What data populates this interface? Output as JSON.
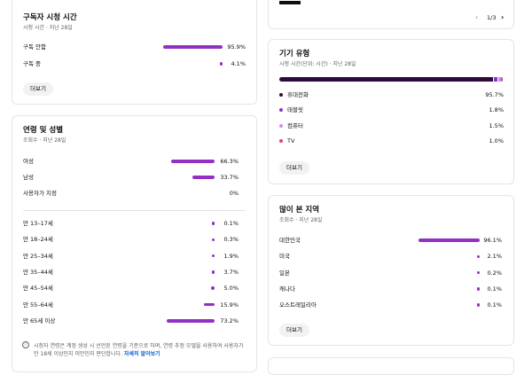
{
  "top_card": {
    "pagination": "1/3"
  },
  "subscriber_watch_time": {
    "title": "구독자 시청 시간",
    "subtitle": "시청 시간 · 지난 28일",
    "color": "#9230c4",
    "rows": [
      {
        "label": "구독 안함",
        "value": 95.9,
        "value_label": "95.9%"
      },
      {
        "label": "구독 중",
        "value": 4.1,
        "value_label": "4.1%"
      }
    ],
    "button": "더보기"
  },
  "age_gender": {
    "title": "연령 및 성별",
    "subtitle": "조회수 · 지난 28일",
    "color": "#9230c4",
    "gender_rows": [
      {
        "label": "여성",
        "value": 66.3,
        "value_label": "66.3%"
      },
      {
        "label": "남성",
        "value": 33.7,
        "value_label": "33.7%"
      },
      {
        "label": "사용자가 지정",
        "value": 0,
        "value_label": "0%"
      }
    ],
    "age_rows": [
      {
        "label": "만 13–17세",
        "value": 0.1,
        "value_label": "0.1%"
      },
      {
        "label": "만 18–24세",
        "value": 0.3,
        "value_label": "0.3%"
      },
      {
        "label": "만 25–34세",
        "value": 1.9,
        "value_label": "1.9%"
      },
      {
        "label": "만 35–44세",
        "value": 3.7,
        "value_label": "3.7%"
      },
      {
        "label": "만 45–54세",
        "value": 5.0,
        "value_label": "5.0%"
      },
      {
        "label": "만 55–64세",
        "value": 15.9,
        "value_label": "15.9%"
      },
      {
        "label": "만 65세 이상",
        "value": 73.2,
        "value_label": "73.2%"
      }
    ],
    "note": "시청자 연령은 계정 생성 시 선언된 연령을 기준으로 하며, 연령 추정 모델을 사용하여 사용자가 만 18세 이상인지 미만인지 판단합니다.",
    "link": "자세히 알아보기"
  },
  "device_type": {
    "title": "기기 유형",
    "subtitle": "시청 시간(단위: 시간) · 지난 28일",
    "rows": [
      {
        "label": "휴대전화",
        "value": 95.7,
        "value_label": "95.7%",
        "color": "#2b0a3d"
      },
      {
        "label": "태블릿",
        "value": 1.8,
        "value_label": "1.8%",
        "color": "#9230c4"
      },
      {
        "label": "컴퓨터",
        "value": 1.5,
        "value_label": "1.5%",
        "color": "#c98cf0"
      },
      {
        "label": "TV",
        "value": 1.0,
        "value_label": "1.0%",
        "color": "#e0407a"
      }
    ],
    "button": "더보기"
  },
  "top_regions": {
    "title": "많이 본 지역",
    "subtitle": "조회수 · 지난 28일",
    "color": "#9230c4",
    "rows": [
      {
        "label": "대한민국",
        "value": 96.1,
        "value_label": "96.1%"
      },
      {
        "label": "미국",
        "value": 2.1,
        "value_label": "2.1%"
      },
      {
        "label": "일본",
        "value": 0.2,
        "value_label": "0.2%"
      },
      {
        "label": "캐나다",
        "value": 0.1,
        "value_label": "0.1%"
      },
      {
        "label": "오스트레일리아",
        "value": 0.1,
        "value_label": "0.1%"
      }
    ],
    "button": "더보기"
  }
}
